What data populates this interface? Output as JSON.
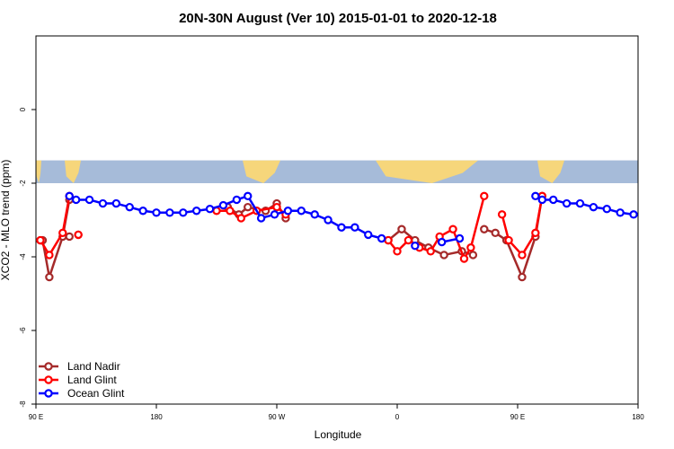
{
  "chart_data": {
    "type": "line",
    "title": "20N-30N August (Ver 10)   2015-01-01 to 2020-12-18",
    "xlabel": "Longitude",
    "ylabel": "XCO2 - MLO trend (ppm)",
    "xlim": [
      -90,
      180
    ],
    "ylim": [
      -8,
      2
    ],
    "x_ticks": [
      {
        "value": -90,
        "label": "90 E"
      },
      {
        "value": -36,
        "label": "180"
      },
      {
        "value": 18,
        "label": "90 W"
      },
      {
        "value": 72,
        "label": "0"
      },
      {
        "value": 126,
        "label": "90 E"
      },
      {
        "value": 180,
        "label": "180"
      }
    ],
    "y_ticks": [
      {
        "value": 0,
        "label": "0"
      },
      {
        "value": -2,
        "label": "-2"
      },
      {
        "value": -4,
        "label": "-4"
      },
      {
        "value": -6,
        "label": "-6"
      },
      {
        "value": -8,
        "label": "-8"
      }
    ],
    "map_strip": {
      "ymin": -2.0,
      "ymax": -1.38,
      "ocean_color": "#a6bbd9",
      "land_color": "#f6d67b"
    },
    "legend_position": "bottom-left",
    "series": [
      {
        "name": "Land Nadir",
        "color": "#a52a2a",
        "x": [
          -87,
          -84,
          -78,
          -75,
          -4,
          1,
          5,
          13,
          18,
          22,
          68,
          74,
          80,
          86,
          93,
          101,
          106,
          111,
          116,
          121,
          128,
          134,
          137,
          -71,
          -88,
          -75
        ],
        "y": [
          -3.55,
          -4.55,
          -3.45,
          -2.45,
          -2.65,
          -2.85,
          -2.65,
          -2.75,
          -2.55,
          -2.95,
          -3.55,
          -3.25,
          -3.55,
          -3.75,
          -3.95,
          -3.85,
          -3.95,
          -3.25,
          -3.35,
          -3.55,
          -4.55,
          -3.45,
          -2.35,
          -3.4,
          -3.55,
          -3.45
        ],
        "segments": [
          [
            0,
            4
          ],
          [
            4,
            10
          ],
          [
            10,
            17
          ],
          [
            17,
            23
          ]
        ]
      },
      {
        "name": "Land Glint",
        "color": "#ff0000",
        "x": [
          -88,
          -84,
          -78,
          -75,
          -9,
          -3,
          2,
          9,
          18,
          22,
          68,
          72,
          77,
          82,
          87,
          91,
          97,
          102,
          105,
          111,
          119,
          122,
          128,
          134,
          137,
          -71
        ],
        "y": [
          -3.55,
          -3.95,
          -3.35,
          -2.35,
          -2.75,
          -2.75,
          -2.95,
          -2.75,
          -2.65,
          -2.85,
          -3.55,
          -3.85,
          -3.55,
          -3.75,
          -3.85,
          -3.45,
          -3.25,
          -4.05,
          -3.75,
          -2.35,
          -2.85,
          -3.55,
          -3.95,
          -3.35,
          -2.35,
          -3.4
        ],
        "segments": [
          [
            0,
            4
          ],
          [
            4,
            10
          ],
          [
            10,
            20
          ],
          [
            20,
            25
          ]
        ]
      },
      {
        "name": "Ocean Glint",
        "color": "#0000ff",
        "x": [
          -75,
          -72,
          -66,
          -60,
          -54,
          -48,
          -42,
          -36,
          -30,
          -24,
          -18,
          -12,
          -6,
          0,
          5,
          11,
          17,
          23,
          29,
          35,
          41,
          47,
          53,
          59,
          65,
          80,
          92,
          100,
          134,
          137,
          142,
          148,
          154,
          160,
          166,
          172,
          178
        ],
        "y": [
          -2.35,
          -2.45,
          -2.45,
          -2.55,
          -2.55,
          -2.65,
          -2.75,
          -2.8,
          -2.8,
          -2.8,
          -2.75,
          -2.7,
          -2.6,
          -2.45,
          -2.35,
          -2.95,
          -2.85,
          -2.75,
          -2.75,
          -2.85,
          -3.0,
          -3.2,
          -3.2,
          -3.4,
          -3.5,
          -3.7,
          -3.6,
          -3.5,
          -2.35,
          -2.45,
          -2.45,
          -2.55,
          -2.55,
          -2.65,
          -2.7,
          -2.8,
          -2.85
        ],
        "segments": [
          [
            0,
            25
          ],
          [
            26,
            28
          ],
          [
            28,
            37
          ]
        ]
      }
    ]
  }
}
